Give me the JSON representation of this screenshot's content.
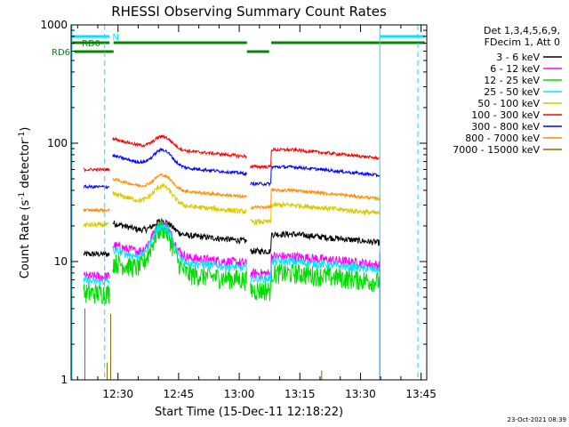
{
  "chart_data": {
    "type": "line",
    "title": "RHESSI Observing Summary Count Rates",
    "xlabel": "Start Time (15-Dec-11 12:18:22)",
    "ylabel_main": "Count Rate (s",
    "ylabel_sup1": "-1",
    "ylabel_mid": " detector",
    "ylabel_sup2": "-1",
    "ylabel_end": ")",
    "yscale": "log",
    "ylim": [
      1,
      1000
    ],
    "xlim_minutes": [
      0,
      88
    ],
    "x_ticks": [
      {
        "label": "12:30",
        "min": 11.6
      },
      {
        "label": "12:45",
        "min": 26.6
      },
      {
        "label": "13:00",
        "min": 41.6
      },
      {
        "label": "13:15",
        "min": 56.6
      },
      {
        "label": "13:30",
        "min": 71.6
      },
      {
        "label": "13:45",
        "min": 86.6
      }
    ],
    "y_ticks": [
      {
        "label": "1",
        "value": 1
      },
      {
        "label": "10",
        "value": 10
      },
      {
        "label": "100",
        "value": 100
      },
      {
        "label": "1000",
        "value": 1000
      }
    ],
    "legend_header": [
      "Det 1,3,4,5,6,9,",
      "FDecim 1, Att 0"
    ],
    "legend_placement": "right",
    "series": [
      {
        "name": "3 - 6 keV",
        "color": "#000000",
        "base": 17,
        "flare": 1.3,
        "noise": 0.06
      },
      {
        "name": "6 - 12 keV",
        "color": "#ff00ff",
        "base": 11,
        "flare": 1.9,
        "noise": 0.1
      },
      {
        "name": "12 - 25 keV",
        "color": "#00dd00",
        "base": 8,
        "flare": 2.4,
        "noise": 0.2
      },
      {
        "name": "25 - 50 keV",
        "color": "#00e5ff",
        "base": 10,
        "flare": 2.0,
        "noise": 0.08
      },
      {
        "name": "50 - 100 keV",
        "color": "#d8c800",
        "base": 30,
        "flare": 1.45,
        "noise": 0.05
      },
      {
        "name": "100 - 300 keV",
        "color": "#ff0000",
        "base": 88,
        "flare": 1.3,
        "noise": 0.03
      },
      {
        "name": "300 - 800 keV",
        "color": "#0000ff",
        "base": 63,
        "flare": 1.4,
        "noise": 0.03
      },
      {
        "name": "800 - 7000 keV",
        "color": "#ff8c00",
        "base": 40,
        "flare": 1.35,
        "noise": 0.03
      },
      {
        "name": "7000 - 15000 keV",
        "color": "#8b6b00",
        "base": null,
        "flare": 1,
        "noise": 0
      }
    ],
    "gaps_minutes": [
      [
        9.5,
        10.2
      ],
      [
        43.5,
        44.3
      ]
    ],
    "data_start_minutes": 3.1,
    "data_end_minutes": 76.4,
    "flare_peak_minute": 22.5,
    "flare_width_minutes": 2.2,
    "attenuator_dip": {
      "start_minutes": 44.3,
      "end_minutes": 49.5,
      "factor": 0.72
    },
    "status_bars": [
      {
        "label": "N",
        "color": "#00e5ff",
        "segments": [
          [
            -3,
            9.5
          ],
          [
            76.4,
            87.5
          ]
        ]
      },
      {
        "label": "RD0",
        "color": "#008800",
        "segments": [
          [
            -3,
            9.5
          ],
          [
            10.5,
            43.5
          ],
          [
            49.5,
            87.5
          ]
        ]
      },
      {
        "label": "RD6",
        "color": "#008800",
        "segments": [
          [
            0.8,
            10.5
          ],
          [
            43.5,
            49.0
          ]
        ]
      }
    ],
    "vlines": [
      {
        "min": -3,
        "color": "#00e5ff",
        "style": "solid"
      },
      {
        "min": 8.3,
        "color": "#00e5ff",
        "style": "dashed"
      },
      {
        "min": 76.4,
        "color": "#00e5ff",
        "style": "solid"
      },
      {
        "min": 85.8,
        "color": "#00e5ff",
        "style": "dashed"
      }
    ]
  },
  "footer_date": "23-Oct-2021 08:39"
}
